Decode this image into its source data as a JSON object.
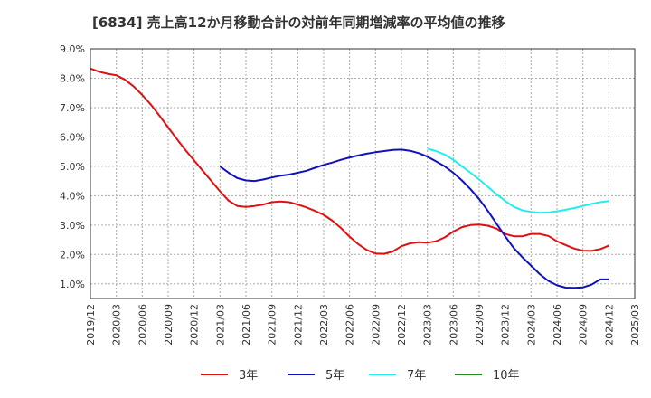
{
  "chart_data": {
    "type": "line",
    "title": "[6834]  売上高12か月移動合計の対前年同期増減率の平均値の推移",
    "xlabel": "",
    "ylabel": "",
    "x_ticks": [
      "2019/12",
      "2020/03",
      "2020/06",
      "2020/09",
      "2020/12",
      "2021/03",
      "2021/06",
      "2021/09",
      "2021/12",
      "2022/03",
      "2022/06",
      "2022/09",
      "2022/12",
      "2023/03",
      "2023/06",
      "2023/09",
      "2023/12",
      "2024/03",
      "2024/06",
      "2024/09",
      "2024/12",
      "2025/03"
    ],
    "y_ticks": [
      "1.0%",
      "2.0%",
      "3.0%",
      "4.0%",
      "5.0%",
      "6.0%",
      "7.0%",
      "8.0%",
      "9.0%"
    ],
    "ylim": [
      0.5,
      9.0
    ],
    "grid": true,
    "legend_position": "bottom",
    "series": [
      {
        "name": "3年",
        "color": "#dd1111",
        "x": [
          "2019/12",
          "2020/01",
          "2020/02",
          "2020/03",
          "2020/04",
          "2020/05",
          "2020/06",
          "2020/07",
          "2020/08",
          "2020/09",
          "2020/10",
          "2020/11",
          "2020/12",
          "2021/01",
          "2021/02",
          "2021/03",
          "2021/04",
          "2021/05",
          "2021/06",
          "2021/07",
          "2021/08",
          "2021/09",
          "2021/10",
          "2021/11",
          "2021/12",
          "2022/01",
          "2022/02",
          "2022/03",
          "2022/04",
          "2022/05",
          "2022/06",
          "2022/07",
          "2022/08",
          "2022/09",
          "2022/10",
          "2022/11",
          "2022/12",
          "2023/01",
          "2023/02",
          "2023/03",
          "2023/04",
          "2023/05",
          "2023/06",
          "2023/07",
          "2023/08",
          "2023/09",
          "2023/10",
          "2023/11",
          "2023/12",
          "2024/01",
          "2024/02",
          "2024/03",
          "2024/04",
          "2024/05",
          "2024/06",
          "2024/07",
          "2024/08",
          "2024/09",
          "2024/10",
          "2024/11",
          "2024/12"
        ],
        "values": [
          8.33,
          8.22,
          8.15,
          8.1,
          7.95,
          7.72,
          7.43,
          7.1,
          6.72,
          6.32,
          5.93,
          5.55,
          5.2,
          4.85,
          4.5,
          4.15,
          3.83,
          3.65,
          3.62,
          3.65,
          3.7,
          3.78,
          3.8,
          3.78,
          3.7,
          3.6,
          3.48,
          3.35,
          3.15,
          2.9,
          2.6,
          2.35,
          2.15,
          2.03,
          2.02,
          2.1,
          2.28,
          2.38,
          2.42,
          2.4,
          2.45,
          2.58,
          2.78,
          2.93,
          3.0,
          3.02,
          2.98,
          2.88,
          2.7,
          2.62,
          2.62,
          2.7,
          2.7,
          2.63,
          2.45,
          2.32,
          2.2,
          2.13,
          2.12,
          2.18,
          2.3
        ]
      },
      {
        "name": "5年",
        "color": "#1111bb",
        "x": [
          "2021/03",
          "2021/04",
          "2021/05",
          "2021/06",
          "2021/07",
          "2021/08",
          "2021/09",
          "2021/10",
          "2021/11",
          "2021/12",
          "2022/01",
          "2022/02",
          "2022/03",
          "2022/04",
          "2022/05",
          "2022/06",
          "2022/07",
          "2022/08",
          "2022/09",
          "2022/10",
          "2022/11",
          "2022/12",
          "2023/01",
          "2023/02",
          "2023/03",
          "2023/04",
          "2023/05",
          "2023/06",
          "2023/07",
          "2023/08",
          "2023/09",
          "2023/10",
          "2023/11",
          "2023/12",
          "2024/01",
          "2024/02",
          "2024/03",
          "2024/04",
          "2024/05",
          "2024/06",
          "2024/07",
          "2024/08",
          "2024/09",
          "2024/10",
          "2024/11",
          "2024/12"
        ],
        "values": [
          5.0,
          4.78,
          4.6,
          4.52,
          4.5,
          4.55,
          4.62,
          4.68,
          4.72,
          4.78,
          4.85,
          4.95,
          5.05,
          5.13,
          5.22,
          5.3,
          5.37,
          5.43,
          5.48,
          5.52,
          5.56,
          5.57,
          5.53,
          5.45,
          5.33,
          5.17,
          5.0,
          4.78,
          4.52,
          4.22,
          3.88,
          3.48,
          3.05,
          2.62,
          2.22,
          1.9,
          1.62,
          1.33,
          1.1,
          0.95,
          0.87,
          0.86,
          0.88,
          0.97,
          1.15,
          1.15
        ]
      },
      {
        "name": "7年",
        "color": "#22eeee",
        "x": [
          "2023/03",
          "2023/04",
          "2023/05",
          "2023/06",
          "2023/07",
          "2023/08",
          "2023/09",
          "2023/10",
          "2023/11",
          "2023/12",
          "2024/01",
          "2024/02",
          "2024/03",
          "2024/04",
          "2024/05",
          "2024/06",
          "2024/07",
          "2024/08",
          "2024/09",
          "2024/10",
          "2024/11",
          "2024/12"
        ],
        "values": [
          5.6,
          5.52,
          5.4,
          5.22,
          5.0,
          4.78,
          4.55,
          4.3,
          4.05,
          3.82,
          3.62,
          3.5,
          3.45,
          3.42,
          3.43,
          3.47,
          3.52,
          3.58,
          3.65,
          3.72,
          3.78,
          3.82
        ]
      },
      {
        "name": "10年",
        "color": "#228822",
        "x": [],
        "values": []
      }
    ]
  }
}
